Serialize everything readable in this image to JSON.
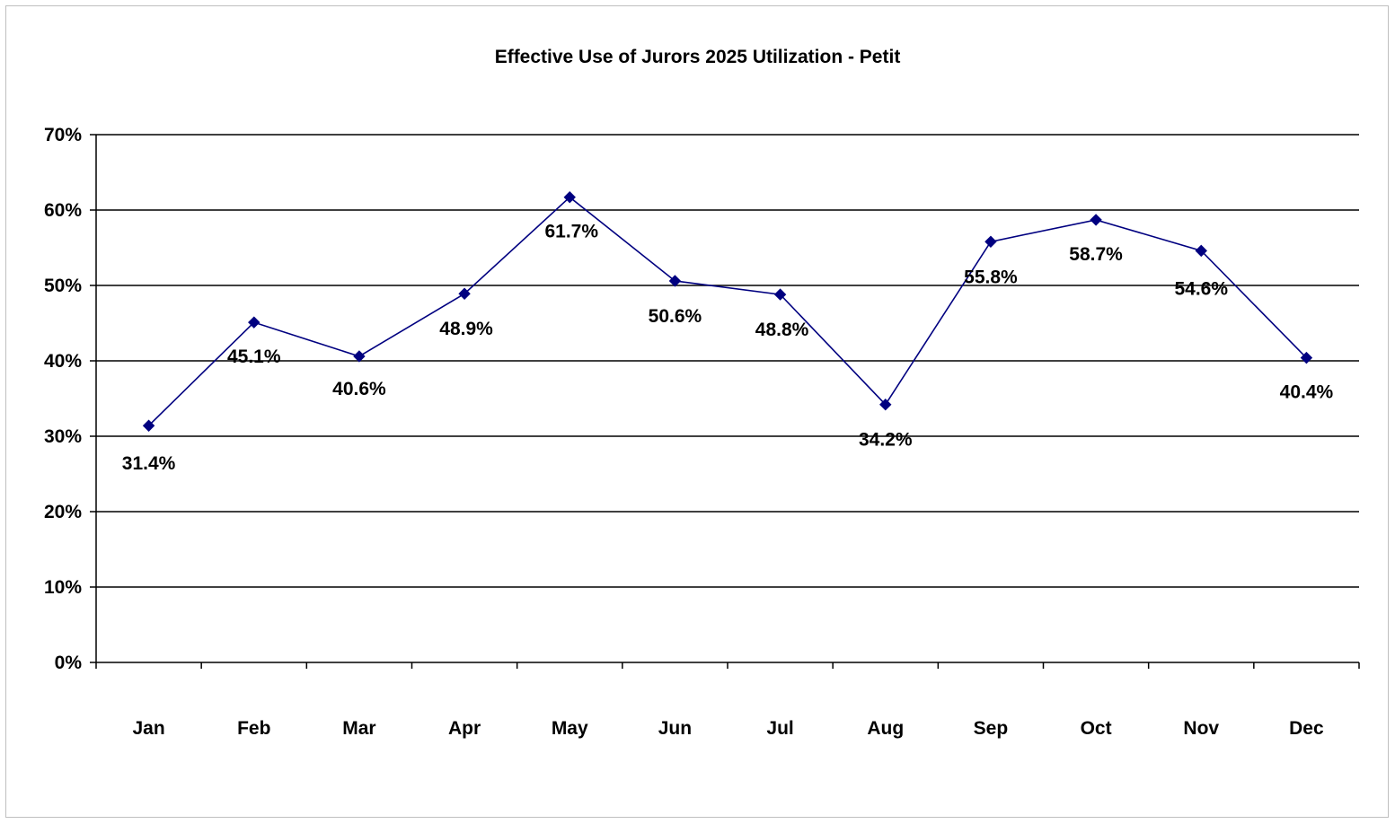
{
  "chart_data": {
    "type": "line",
    "title": "Effective Use of Jurors 2025 Utilization - Petit",
    "xlabel": "",
    "ylabel": "",
    "categories": [
      "Jan",
      "Feb",
      "Mar",
      "Apr",
      "May",
      "Jun",
      "Jul",
      "Aug",
      "Sep",
      "Oct",
      "Nov",
      "Dec"
    ],
    "series": [
      {
        "values": [
          31.4,
          45.1,
          40.6,
          48.9,
          61.7,
          50.6,
          48.8,
          34.2,
          55.8,
          58.7,
          54.6,
          40.4
        ],
        "data_labels": [
          "31.4%",
          "45.1%",
          "40.6%",
          "48.9%",
          "61.7%",
          "50.6%",
          "48.8%",
          "34.2%",
          "55.8%",
          "58.7%",
          "54.6%",
          "40.4%"
        ],
        "color": "#000080",
        "marker": "diamond"
      }
    ],
    "ylim": [
      0,
      70
    ],
    "yticks": [
      0,
      10,
      20,
      30,
      40,
      50,
      60,
      70
    ],
    "ytick_labels": [
      "0%",
      "10%",
      "20%",
      "30%",
      "40%",
      "50%",
      "60%",
      "70%"
    ],
    "grid": true,
    "legend": "none"
  }
}
